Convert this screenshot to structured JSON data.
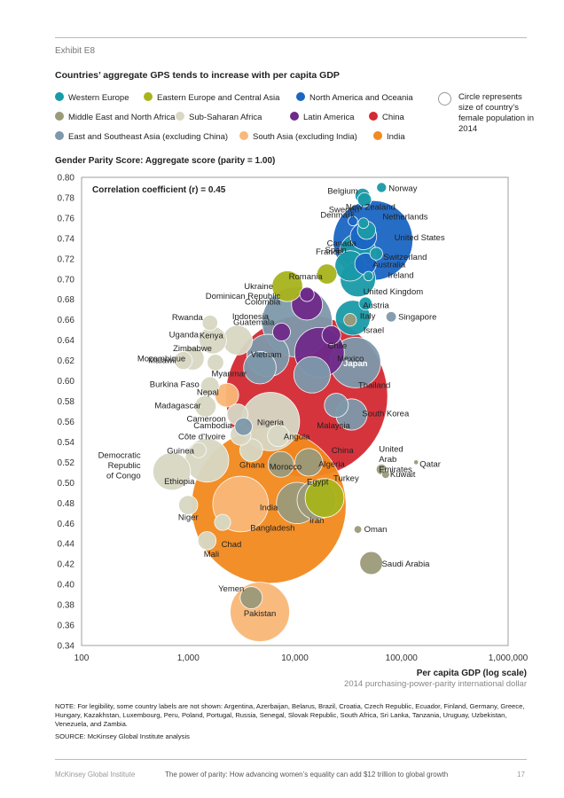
{
  "exhibit": "Exhibit E8",
  "title": "Countries’ aggregate GPS tends to increase with per capita GDP",
  "legend": [
    {
      "label": "Western Europe",
      "color": "#1a9aa8"
    },
    {
      "label": "Eastern Europe and Central Asia",
      "color": "#a8b41c"
    },
    {
      "label": "North America and Oceania",
      "color": "#1b66c4"
    },
    {
      "label": "Middle East and North Africa",
      "color": "#9b9a7a"
    },
    {
      "label": "Sub-Saharan Africa",
      "color": "#d8d8c4"
    },
    {
      "label": "Latin America",
      "color": "#6e2a8a"
    },
    {
      "label": "China",
      "color": "#d42a32"
    },
    {
      "label": "East and Southeast Asia (excluding China)",
      "color": "#7e99ab"
    },
    {
      "label": "South Asia (excluding India)",
      "color": "#f9b877"
    },
    {
      "label": "India",
      "color": "#f28a1e"
    }
  ],
  "size_note": "Circle represents size of country’s female population in 2014",
  "ylabel": "Gender Parity Score: Aggregate score (parity = 1.00)",
  "xlabel": "Per capita GDP (log scale)",
  "xlabel_sub": "2014 purchasing-power-parity international dollar",
  "note": "NOTE: For legibility, some country labels are not shown: Argentina, Azerbaijan, Belarus, Brazil, Croatia, Czech Republic, Ecuador, Finland, Germany, Greece, Hungary, Kazakhstan, Luxembourg, Peru, Poland, Portugal, Russia, Senegal, Slovak Republic, South Africa, Sri Lanka, Tanzania, Uruguay, Uzbekistan, Venezuela, and Zambia.",
  "source": "SOURCE: McKinsey Global Institute analysis",
  "footer": {
    "publisher": "McKinsey Global Institute",
    "report": "The power of parity: How advancing women’s equality can add $12 trillion to global growth",
    "page": "17"
  },
  "chart_data": {
    "type": "scatter",
    "x_scale": "log",
    "xlim": [
      100,
      1000000
    ],
    "ylim": [
      0.34,
      0.8
    ],
    "x_ticks": [
      "100",
      "1,000",
      "10,000",
      "100,000",
      "1,000,000"
    ],
    "y_ticks": [
      "0.34",
      "0.36",
      "0.38",
      "0.40",
      "0.42",
      "0.44",
      "0.46",
      "0.48",
      "0.50",
      "0.52",
      "0.54",
      "0.56",
      "0.58",
      "0.60",
      "0.62",
      "0.64",
      "0.66",
      "0.68",
      "0.70",
      "0.72",
      "0.74",
      "0.76",
      "0.78",
      "0.80"
    ],
    "annotation": "Correlation coefficient (r) = 0.45",
    "bubble_size": "female population, 2014 (millions, approx.)",
    "points": [
      {
        "name": "Norway",
        "region": "Western Europe",
        "x": 65000,
        "y": 0.79,
        "pop": 2.5,
        "label": "Norway"
      },
      {
        "name": "Sweden",
        "region": "Western Europe",
        "x": 45000,
        "y": 0.778,
        "pop": 5,
        "label": "Sweden"
      },
      {
        "name": "Belgium",
        "region": "Western Europe",
        "x": 43000,
        "y": 0.782,
        "pop": 5.6,
        "label": "Belgium"
      },
      {
        "name": "New Zealand",
        "region": "North America and Oceania",
        "x": 35000,
        "y": 0.757,
        "pop": 2.3,
        "label": "New Zealand"
      },
      {
        "name": "Denmark",
        "region": "Western Europe",
        "x": 44000,
        "y": 0.755,
        "pop": 2.8,
        "label": "Denmark"
      },
      {
        "name": "Netherlands",
        "region": "Western Europe",
        "x": 47000,
        "y": 0.748,
        "pop": 8.5,
        "label": "Netherlands"
      },
      {
        "name": "Canada",
        "region": "North America and Oceania",
        "x": 44000,
        "y": 0.742,
        "pop": 17.8,
        "label": "Canada"
      },
      {
        "name": "United States",
        "region": "North America and Oceania",
        "x": 54000,
        "y": 0.738,
        "pop": 162,
        "label": "United States"
      },
      {
        "name": "France",
        "region": "Western Europe",
        "x": 39000,
        "y": 0.727,
        "pop": 33,
        "label": "France"
      },
      {
        "name": "Switzerland",
        "region": "Western Europe",
        "x": 58000,
        "y": 0.725,
        "pop": 4.1,
        "label": "Switzerland"
      },
      {
        "name": "Australia",
        "region": "North America and Oceania",
        "x": 46000,
        "y": 0.715,
        "pop": 11.8,
        "label": "Australia"
      },
      {
        "name": "Spain",
        "region": "Western Europe",
        "x": 33000,
        "y": 0.713,
        "pop": 23.6,
        "label": "Spain"
      },
      {
        "name": "Romania",
        "region": "Eastern Europe and Central Asia",
        "x": 20000,
        "y": 0.705,
        "pop": 10.2,
        "label": "Romania"
      },
      {
        "name": "Ireland",
        "region": "Western Europe",
        "x": 49000,
        "y": 0.703,
        "pop": 2.3,
        "label": "Ireland"
      },
      {
        "name": "Ukraine",
        "region": "Eastern Europe and Central Asia",
        "x": 8500,
        "y": 0.693,
        "pop": 24,
        "label": "Ukraine"
      },
      {
        "name": "United Kingdom",
        "region": "Western Europe",
        "x": 39000,
        "y": 0.7,
        "pop": 32,
        "label": "United Kingdom"
      },
      {
        "name": "Dominican Republic",
        "region": "Latin America",
        "x": 13000,
        "y": 0.685,
        "pop": 5.2,
        "label": "Dominican Republic"
      },
      {
        "name": "Austria",
        "region": "Western Europe",
        "x": 46000,
        "y": 0.676,
        "pop": 4.3,
        "label": "Austria"
      },
      {
        "name": "Colombia",
        "region": "Latin America",
        "x": 13000,
        "y": 0.675,
        "pop": 24.5,
        "label": "Colombia"
      },
      {
        "name": "Rwanda",
        "region": "Sub-Saharan Africa",
        "x": 1600,
        "y": 0.657,
        "pop": 6.1,
        "label": "Rwanda"
      },
      {
        "name": "Indonesia",
        "region": "East and Southeast Asia (excluding China)",
        "x": 10500,
        "y": 0.658,
        "pop": 126,
        "label": "Indonesia"
      },
      {
        "name": "Italy",
        "region": "Western Europe",
        "x": 35000,
        "y": 0.662,
        "pop": 31,
        "label": "Italy"
      },
      {
        "name": "Singapore",
        "region": "East and Southeast Asia (excluding China)",
        "x": 80000,
        "y": 0.663,
        "pop": 2.7,
        "label": "Singapore"
      },
      {
        "name": "Guatemala",
        "region": "Latin America",
        "x": 7500,
        "y": 0.648,
        "pop": 8,
        "label": "Guatemala"
      },
      {
        "name": "Israel",
        "region": "Middle East and North Africa",
        "x": 33000,
        "y": 0.66,
        "pop": 4.1,
        "label": "Israel"
      },
      {
        "name": "Uganda",
        "region": "Sub-Saharan Africa",
        "x": 1700,
        "y": 0.64,
        "pop": 19,
        "label": "Uganda"
      },
      {
        "name": "Kenya",
        "region": "Sub-Saharan Africa",
        "x": 2900,
        "y": 0.64,
        "pop": 22.5,
        "label": "Kenya"
      },
      {
        "name": "Chile",
        "region": "Latin America",
        "x": 22000,
        "y": 0.645,
        "pop": 9,
        "label": "Chile"
      },
      {
        "name": "Mexico",
        "region": "Latin America",
        "x": 17000,
        "y": 0.628,
        "pop": 63,
        "label": "Mexico"
      },
      {
        "name": "Mozambique",
        "region": "Sub-Saharan Africa",
        "x": 1100,
        "y": 0.622,
        "pop": 13.5,
        "label": "Mozambique"
      },
      {
        "name": "Zimbabwe",
        "region": "Sub-Saharan Africa",
        "x": 1800,
        "y": 0.618,
        "pop": 7,
        "label": "Zimbabwe"
      },
      {
        "name": "Vietnam",
        "region": "East and Southeast Asia (excluding China)",
        "x": 5600,
        "y": 0.625,
        "pop": 46,
        "label": "Vietnam"
      },
      {
        "name": "Malawi",
        "region": "Sub-Saharan Africa",
        "x": 900,
        "y": 0.62,
        "pop": 8.3,
        "label": "Malawi"
      },
      {
        "name": "Japan",
        "region": "East and Southeast Asia (excluding China)",
        "x": 37000,
        "y": 0.618,
        "pop": 65,
        "label": "Japan"
      },
      {
        "name": "Myanmar",
        "region": "East and Southeast Asia (excluding China)",
        "x": 4700,
        "y": 0.613,
        "pop": 27,
        "label": "Myanmar"
      },
      {
        "name": "Burkina Faso",
        "region": "Sub-Saharan Africa",
        "x": 1600,
        "y": 0.595,
        "pop": 8.5,
        "label": "Burkina Faso"
      },
      {
        "name": "China",
        "region": "China",
        "x": 12900,
        "y": 0.585,
        "pop": 670,
        "label": "China"
      },
      {
        "name": "Thailand",
        "region": "East and Southeast Asia (excluding China)",
        "x": 14500,
        "y": 0.606,
        "pop": 34,
        "label": "Thailand"
      },
      {
        "name": "Nepal",
        "region": "South Asia (excluding India)",
        "x": 2300,
        "y": 0.586,
        "pop": 14.5,
        "label": "Nepal"
      },
      {
        "name": "Madagascar",
        "region": "Sub-Saharan Africa",
        "x": 1450,
        "y": 0.575,
        "pop": 11.7,
        "label": "Madagascar"
      },
      {
        "name": "Malaysia",
        "region": "East and Southeast Asia (excluding China)",
        "x": 24500,
        "y": 0.576,
        "pop": 14.7,
        "label": "Malaysia"
      },
      {
        "name": "South Korea",
        "region": "East and Southeast Asia (excluding China)",
        "x": 34000,
        "y": 0.567,
        "pop": 25,
        "label": "South Korea"
      },
      {
        "name": "Cameroon",
        "region": "Sub-Saharan Africa",
        "x": 2900,
        "y": 0.567,
        "pop": 11.4,
        "label": "Cameroon"
      },
      {
        "name": "Nigeria",
        "region": "Sub-Saharan Africa",
        "x": 5900,
        "y": 0.56,
        "pop": 87,
        "label": "Nigeria"
      },
      {
        "name": "Cambodia",
        "region": "East and Southeast Asia (excluding China)",
        "x": 3300,
        "y": 0.555,
        "pop": 7.8,
        "label": "Cambodia"
      },
      {
        "name": "Angola",
        "region": "Sub-Saharan Africa",
        "x": 7000,
        "y": 0.546,
        "pop": 12,
        "label": "Angola"
      },
      {
        "name": "Côte d’Ivoire",
        "region": "Sub-Saharan Africa",
        "x": 3100,
        "y": 0.547,
        "pop": 11,
        "label": "Côte d’Ivoire"
      },
      {
        "name": "Guinea",
        "region": "Sub-Saharan Africa",
        "x": 1250,
        "y": 0.532,
        "pop": 6,
        "label": "Guinea"
      },
      {
        "name": "Ethiopia",
        "region": "Sub-Saharan Africa",
        "x": 1500,
        "y": 0.522,
        "pop": 48.5,
        "label": "Ethiopia"
      },
      {
        "name": "Ghana",
        "region": "Sub-Saharan Africa",
        "x": 3900,
        "y": 0.532,
        "pop": 13.3,
        "label": "Ghana"
      },
      {
        "name": "Morocco",
        "region": "Middle East and North Africa",
        "x": 7400,
        "y": 0.518,
        "pop": 17,
        "label": "Morocco"
      },
      {
        "name": "United Arab Emirates",
        "region": "Middle East and North Africa",
        "x": 65000,
        "y": 0.513,
        "pop": 2.9,
        "label": "United Arab Emirates"
      },
      {
        "name": "Qatar",
        "region": "Middle East and North Africa",
        "x": 137000,
        "y": 0.52,
        "pop": 0.6,
        "label": "Qatar"
      },
      {
        "name": "Algeria",
        "region": "Middle East and North Africa",
        "x": 13500,
        "y": 0.52,
        "pop": 19.5,
        "label": "Algeria"
      },
      {
        "name": "Democratic Republic of Congo",
        "region": "Sub-Saharan Africa",
        "x": 700,
        "y": 0.511,
        "pop": 36,
        "label": "Democratic Republic of Congo"
      },
      {
        "name": "Kuwait",
        "region": "Middle East and North Africa",
        "x": 71000,
        "y": 0.508,
        "pop": 1.6,
        "label": "Kuwait"
      },
      {
        "name": "India",
        "region": "India",
        "x": 5700,
        "y": 0.477,
        "pop": 610,
        "label": "India"
      },
      {
        "name": "Turkey",
        "region": "Eastern Europe and Central Asia",
        "x": 19000,
        "y": 0.485,
        "pop": 38.5,
        "label": "Turkey"
      },
      {
        "name": "Egypt",
        "region": "Middle East and North Africa",
        "x": 10500,
        "y": 0.48,
        "pop": 43.5,
        "label": "Egypt"
      },
      {
        "name": "Bangladesh",
        "region": "South Asia (excluding India)",
        "x": 3100,
        "y": 0.479,
        "pop": 79,
        "label": "Bangladesh"
      },
      {
        "name": "Iran",
        "region": "Middle East and North Africa",
        "x": 16000,
        "y": 0.483,
        "pop": 39,
        "label": "Iran"
      },
      {
        "name": "Niger",
        "region": "Sub-Saharan Africa",
        "x": 1000,
        "y": 0.478,
        "pop": 9.3,
        "label": "Niger"
      },
      {
        "name": "Chad",
        "region": "Sub-Saharan Africa",
        "x": 2100,
        "y": 0.461,
        "pop": 6.7,
        "label": "Chad"
      },
      {
        "name": "Oman",
        "region": "Middle East and North Africa",
        "x": 39000,
        "y": 0.454,
        "pop": 1.5,
        "label": "Oman"
      },
      {
        "name": "Mali",
        "region": "Sub-Saharan Africa",
        "x": 1500,
        "y": 0.443,
        "pop": 8.5,
        "label": "Mali"
      },
      {
        "name": "Saudi Arabia",
        "region": "Middle East and North Africa",
        "x": 52000,
        "y": 0.421,
        "pop": 13.3,
        "label": "Saudi Arabia"
      },
      {
        "name": "Yemen",
        "region": "Middle East and North Africa",
        "x": 3900,
        "y": 0.387,
        "pop": 12.5,
        "label": "Yemen"
      },
      {
        "name": "Pakistan",
        "region": "South Asia (excluding India)",
        "x": 4700,
        "y": 0.373,
        "pop": 90,
        "label": "Pakistan"
      }
    ]
  }
}
